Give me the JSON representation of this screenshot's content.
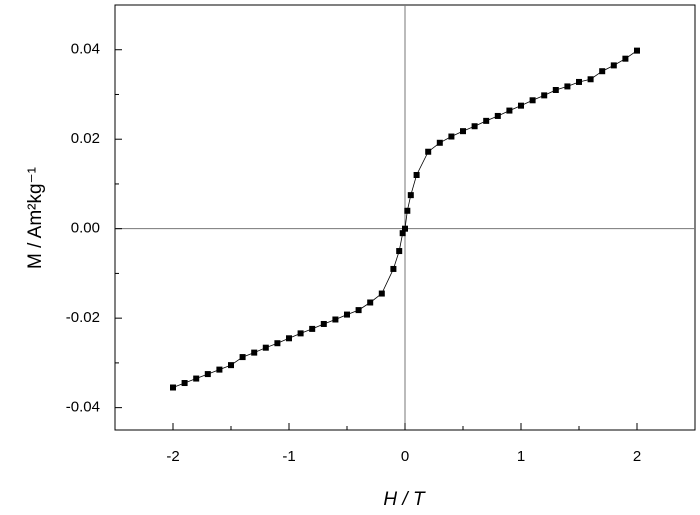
{
  "chart_data": {
    "type": "scatter",
    "x_label": "H / T",
    "y_label": "M / Am²kg⁻¹",
    "x": [
      -2.0,
      -1.9,
      -1.8,
      -1.7,
      -1.6,
      -1.5,
      -1.4,
      -1.3,
      -1.2,
      -1.1,
      -1.0,
      -0.9,
      -0.8,
      -0.7,
      -0.6,
      -0.5,
      -0.4,
      -0.3,
      -0.2,
      -0.1,
      -0.05,
      -0.02,
      0.0,
      0.02,
      0.05,
      0.1,
      0.2,
      0.3,
      0.4,
      0.5,
      0.6,
      0.7,
      0.8,
      0.9,
      1.0,
      1.1,
      1.2,
      1.3,
      1.4,
      1.5,
      1.6,
      1.7,
      1.8,
      1.9,
      2.0
    ],
    "series": [
      {
        "color": "#000000",
        "marker": "square",
        "line": true,
        "values": [
          -0.0355,
          -0.0345,
          -0.0335,
          -0.0325,
          -0.0315,
          -0.0305,
          -0.0287,
          -0.0277,
          -0.0266,
          -0.0256,
          -0.0245,
          -0.0234,
          -0.0224,
          -0.0213,
          -0.0203,
          -0.0192,
          -0.0182,
          -0.0165,
          -0.0145,
          -0.009,
          -0.005,
          -0.001,
          0.0,
          0.004,
          0.0075,
          0.012,
          0.0172,
          0.0192,
          0.0206,
          0.0218,
          0.0229,
          0.0241,
          0.0252,
          0.0264,
          0.0275,
          0.0287,
          0.0298,
          0.031,
          0.0318,
          0.0328,
          0.0334,
          0.0352,
          0.0365,
          0.038,
          0.0398
        ]
      }
    ],
    "xlim": [
      -2.5,
      2.5
    ],
    "ylim": [
      -0.045,
      0.05
    ],
    "xticks": [
      -2,
      -1,
      0,
      1,
      2
    ],
    "yticks": [
      -0.04,
      -0.02,
      {
        "value": 0,
        "label": "0.00"
      },
      0.02,
      0.04
    ],
    "xminorticks": [
      -1.5,
      -0.5,
      0.5,
      1.5
    ],
    "yminorticks": [
      -0.03,
      -0.01,
      0.01,
      0.03
    ],
    "zero_lines": true
  }
}
